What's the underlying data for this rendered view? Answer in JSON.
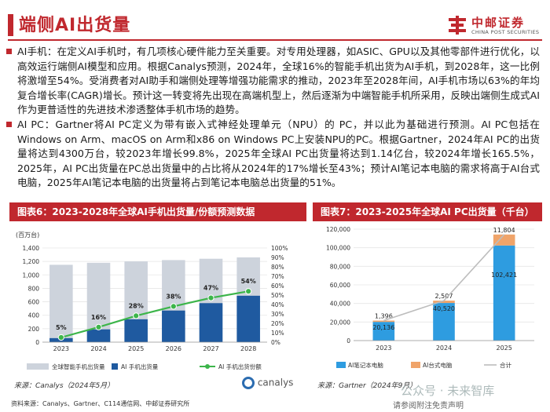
{
  "header": {
    "title": "端侧AI出货量",
    "logo_cn": "中邮证券",
    "logo_en": "CHINA POST SECURITIES"
  },
  "paragraphs": [
    "AI手机：在定义AI手机时，有几项核心硬件能力至关重要。对专用处理器，如ASIC、GPU以及其他零部件进行优化，以高效运行端侧AI模型和应用。根据Canalys预测，2024年，全球16%的智能手机出货为AI手机，到2028年，这一比例将激增至54%。受消费者对AI助手和端侧处理等增强功能需求的推动，2023年至2028年间，AI手机市场以63%的年均复合增长率(CAGR)增长。预计这一转变将先出现在高端机型上，然后逐渐为中端智能手机所采用，反映出端侧生成式AI作为更普适性的先进技术渗透整体手机市场的趋势。",
    "AI PC：Gartner将AI PC定义为带有嵌入式神经处理单元（NPU）的 PC，并以此为基础进行预测。AI PC包括在Windows on Arm、macOS on Arm和x86 on Windows PC上安装NPU的PC。根据Gartner，2024年AI PC的出货量将达到4300万台，较2023年增长99.8%，2025年全球AI PC出货量将达到1.14亿台，较2024年增长165.5%，2025年，AI PC出货量在PC总出货量中的占比将从2024年的17%增长至43%；预计AI笔记本电脑的需求将高于AI台式电脑，2025年AI笔记本电脑的出货量将占到笔记本电脑总出货量的51%。"
  ],
  "chart_data": [
    {
      "type": "bar",
      "panel_title": "图表6：2023-2028年全球AI手机出货量/份额预测数据",
      "ylabel_left": "(百万台)",
      "categories": [
        "2023",
        "2024",
        "2025",
        "2026",
        "2027",
        "2028"
      ],
      "series": [
        {
          "name": "全球智能手机出货量",
          "values": [
            1150,
            1180,
            1200,
            1220,
            1240,
            1260
          ],
          "color": "#cdd3dc"
        },
        {
          "name": "AI 手机出货量",
          "values": [
            60,
            190,
            340,
            470,
            580,
            690
          ],
          "color": "#1f5aa0"
        },
        {
          "name": "AI 手机出货份额",
          "values": [
            5,
            16,
            28,
            38,
            47,
            54
          ],
          "axis": "right",
          "color": "#3cb54a"
        }
      ],
      "share_labels": [
        "5%",
        "16%",
        "28%",
        "38%",
        "47%",
        "54%"
      ],
      "ylim_left": [
        0,
        1400
      ],
      "yticks_left": [
        "0",
        "200",
        "400",
        "600",
        "800",
        "1,000",
        "1,200",
        "1,400"
      ],
      "ylim_right": [
        0,
        100
      ],
      "yticks_right": [
        "0%",
        "10%",
        "20%",
        "30%",
        "40%",
        "50%",
        "60%",
        "70%",
        "80%",
        "90%",
        "100%"
      ],
      "source": "来源：Canalys（2024年5月）",
      "brand": "canalys"
    },
    {
      "type": "bar",
      "stacked": true,
      "panel_title": "图表7：2023-2025年全球AI PC出货量（千台）",
      "categories": [
        "2023",
        "2024",
        "2025"
      ],
      "series": [
        {
          "name": "AI笔记本电脑",
          "values": [
            20136,
            40520,
            102421
          ],
          "labels": [
            "20,136",
            "40,520",
            "102,421"
          ],
          "color": "#2e9ce0"
        },
        {
          "name": "AI台式电脑",
          "values": [
            1396,
            2507,
            11804
          ],
          "labels": [
            "1,396",
            "2,507",
            "11,804"
          ],
          "color": "#f0a46a"
        }
      ],
      "total_name": "合计",
      "ylim": [
        0,
        120000
      ],
      "yticks": [
        "0",
        "20,000",
        "40,000",
        "60,000",
        "80,000",
        "100,000",
        "120,000"
      ],
      "source": "来源：Gartner（2024年9月）"
    }
  ],
  "footer": {
    "sources": "资料来源：Canalys、Gartner、C114通信网、中邮证券研究所",
    "note": "请参阅附注免责声明"
  },
  "watermark": "公众号 · 未来智库"
}
